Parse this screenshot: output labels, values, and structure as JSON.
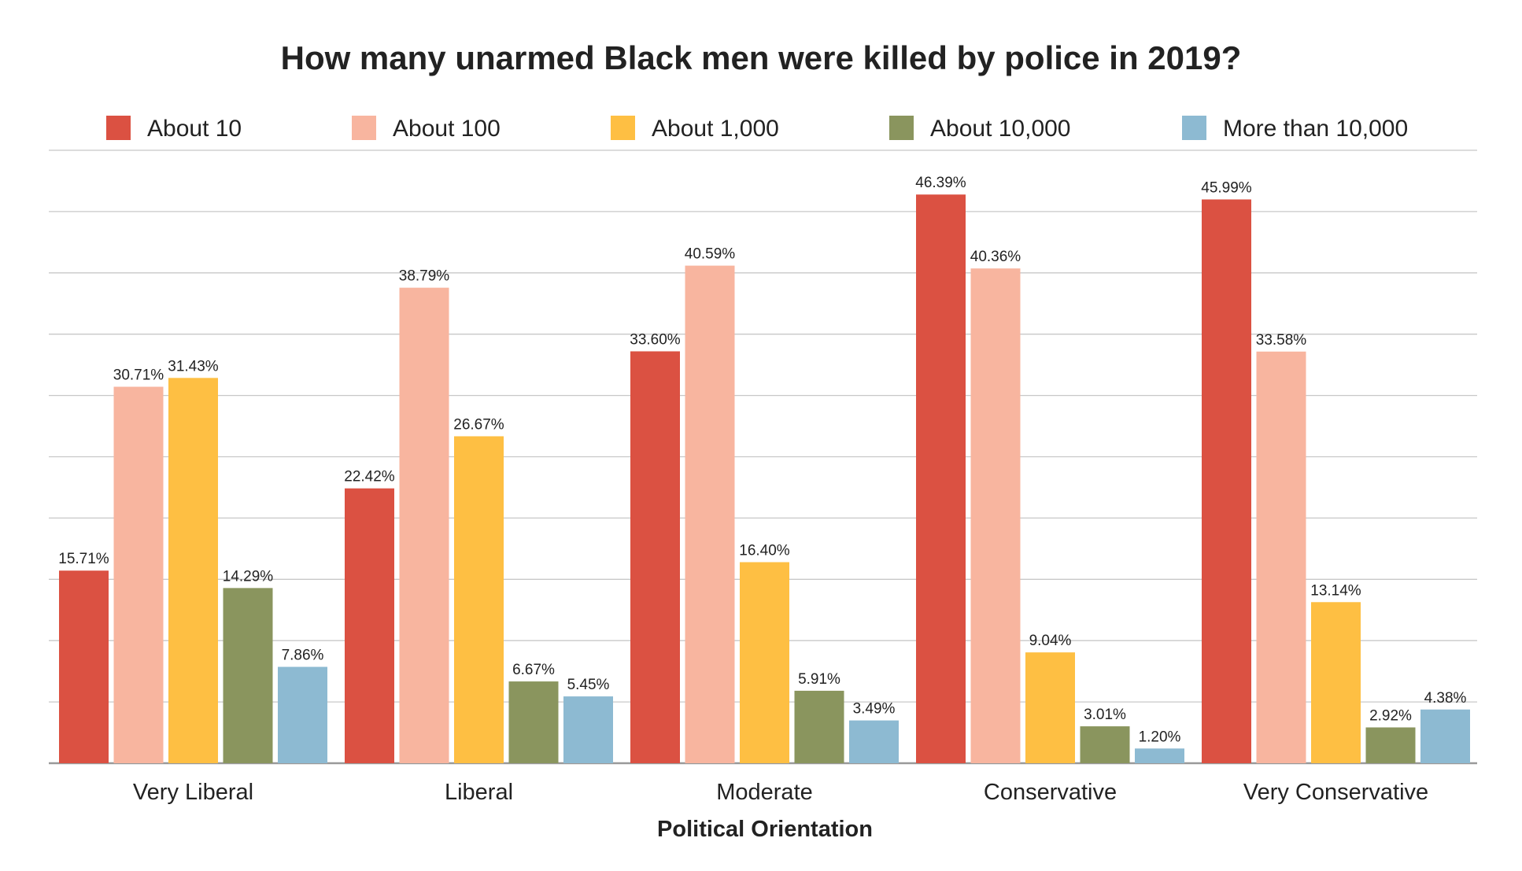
{
  "chart_data": {
    "type": "bar",
    "title": "How many unarmed Black men were killed by police in 2019?",
    "xlabel": "Political Orientation",
    "ylabel": "",
    "ylim": [
      0,
      50
    ],
    "grid": true,
    "legend_position": "top",
    "categories": [
      "Very Liberal",
      "Liberal",
      "Moderate",
      "Conservative",
      "Very Conservative"
    ],
    "series": [
      {
        "name": "About 10",
        "color": "#DB5142",
        "values": [
          15.71,
          22.42,
          33.6,
          46.39,
          45.99
        ],
        "labels": [
          "15.71%",
          "22.42%",
          "33.60%",
          "46.39%",
          "45.99%"
        ]
      },
      {
        "name": "About 100",
        "color": "#F8B59F",
        "values": [
          30.71,
          38.79,
          40.59,
          40.36,
          33.58
        ],
        "labels": [
          "30.71%",
          "38.79%",
          "40.59%",
          "40.36%",
          "33.58%"
        ]
      },
      {
        "name": "About 1,000",
        "color": "#FEBF43",
        "values": [
          31.43,
          26.67,
          16.4,
          9.04,
          13.14
        ],
        "labels": [
          "31.43%",
          "26.67%",
          "16.40%",
          "9.04%",
          "13.14%"
        ]
      },
      {
        "name": "About 10,000",
        "color": "#8A955E",
        "values": [
          14.29,
          6.67,
          5.91,
          3.01,
          2.92
        ],
        "labels": [
          "14.29%",
          "6.67%",
          "5.91%",
          "3.01%",
          "2.92%"
        ]
      },
      {
        "name": "More than 10,000",
        "color": "#8DBAD2",
        "values": [
          7.86,
          5.45,
          3.49,
          1.2,
          4.38
        ],
        "labels": [
          "7.86%",
          "5.45%",
          "3.49%",
          "1.20%",
          "4.38%"
        ]
      }
    ]
  }
}
